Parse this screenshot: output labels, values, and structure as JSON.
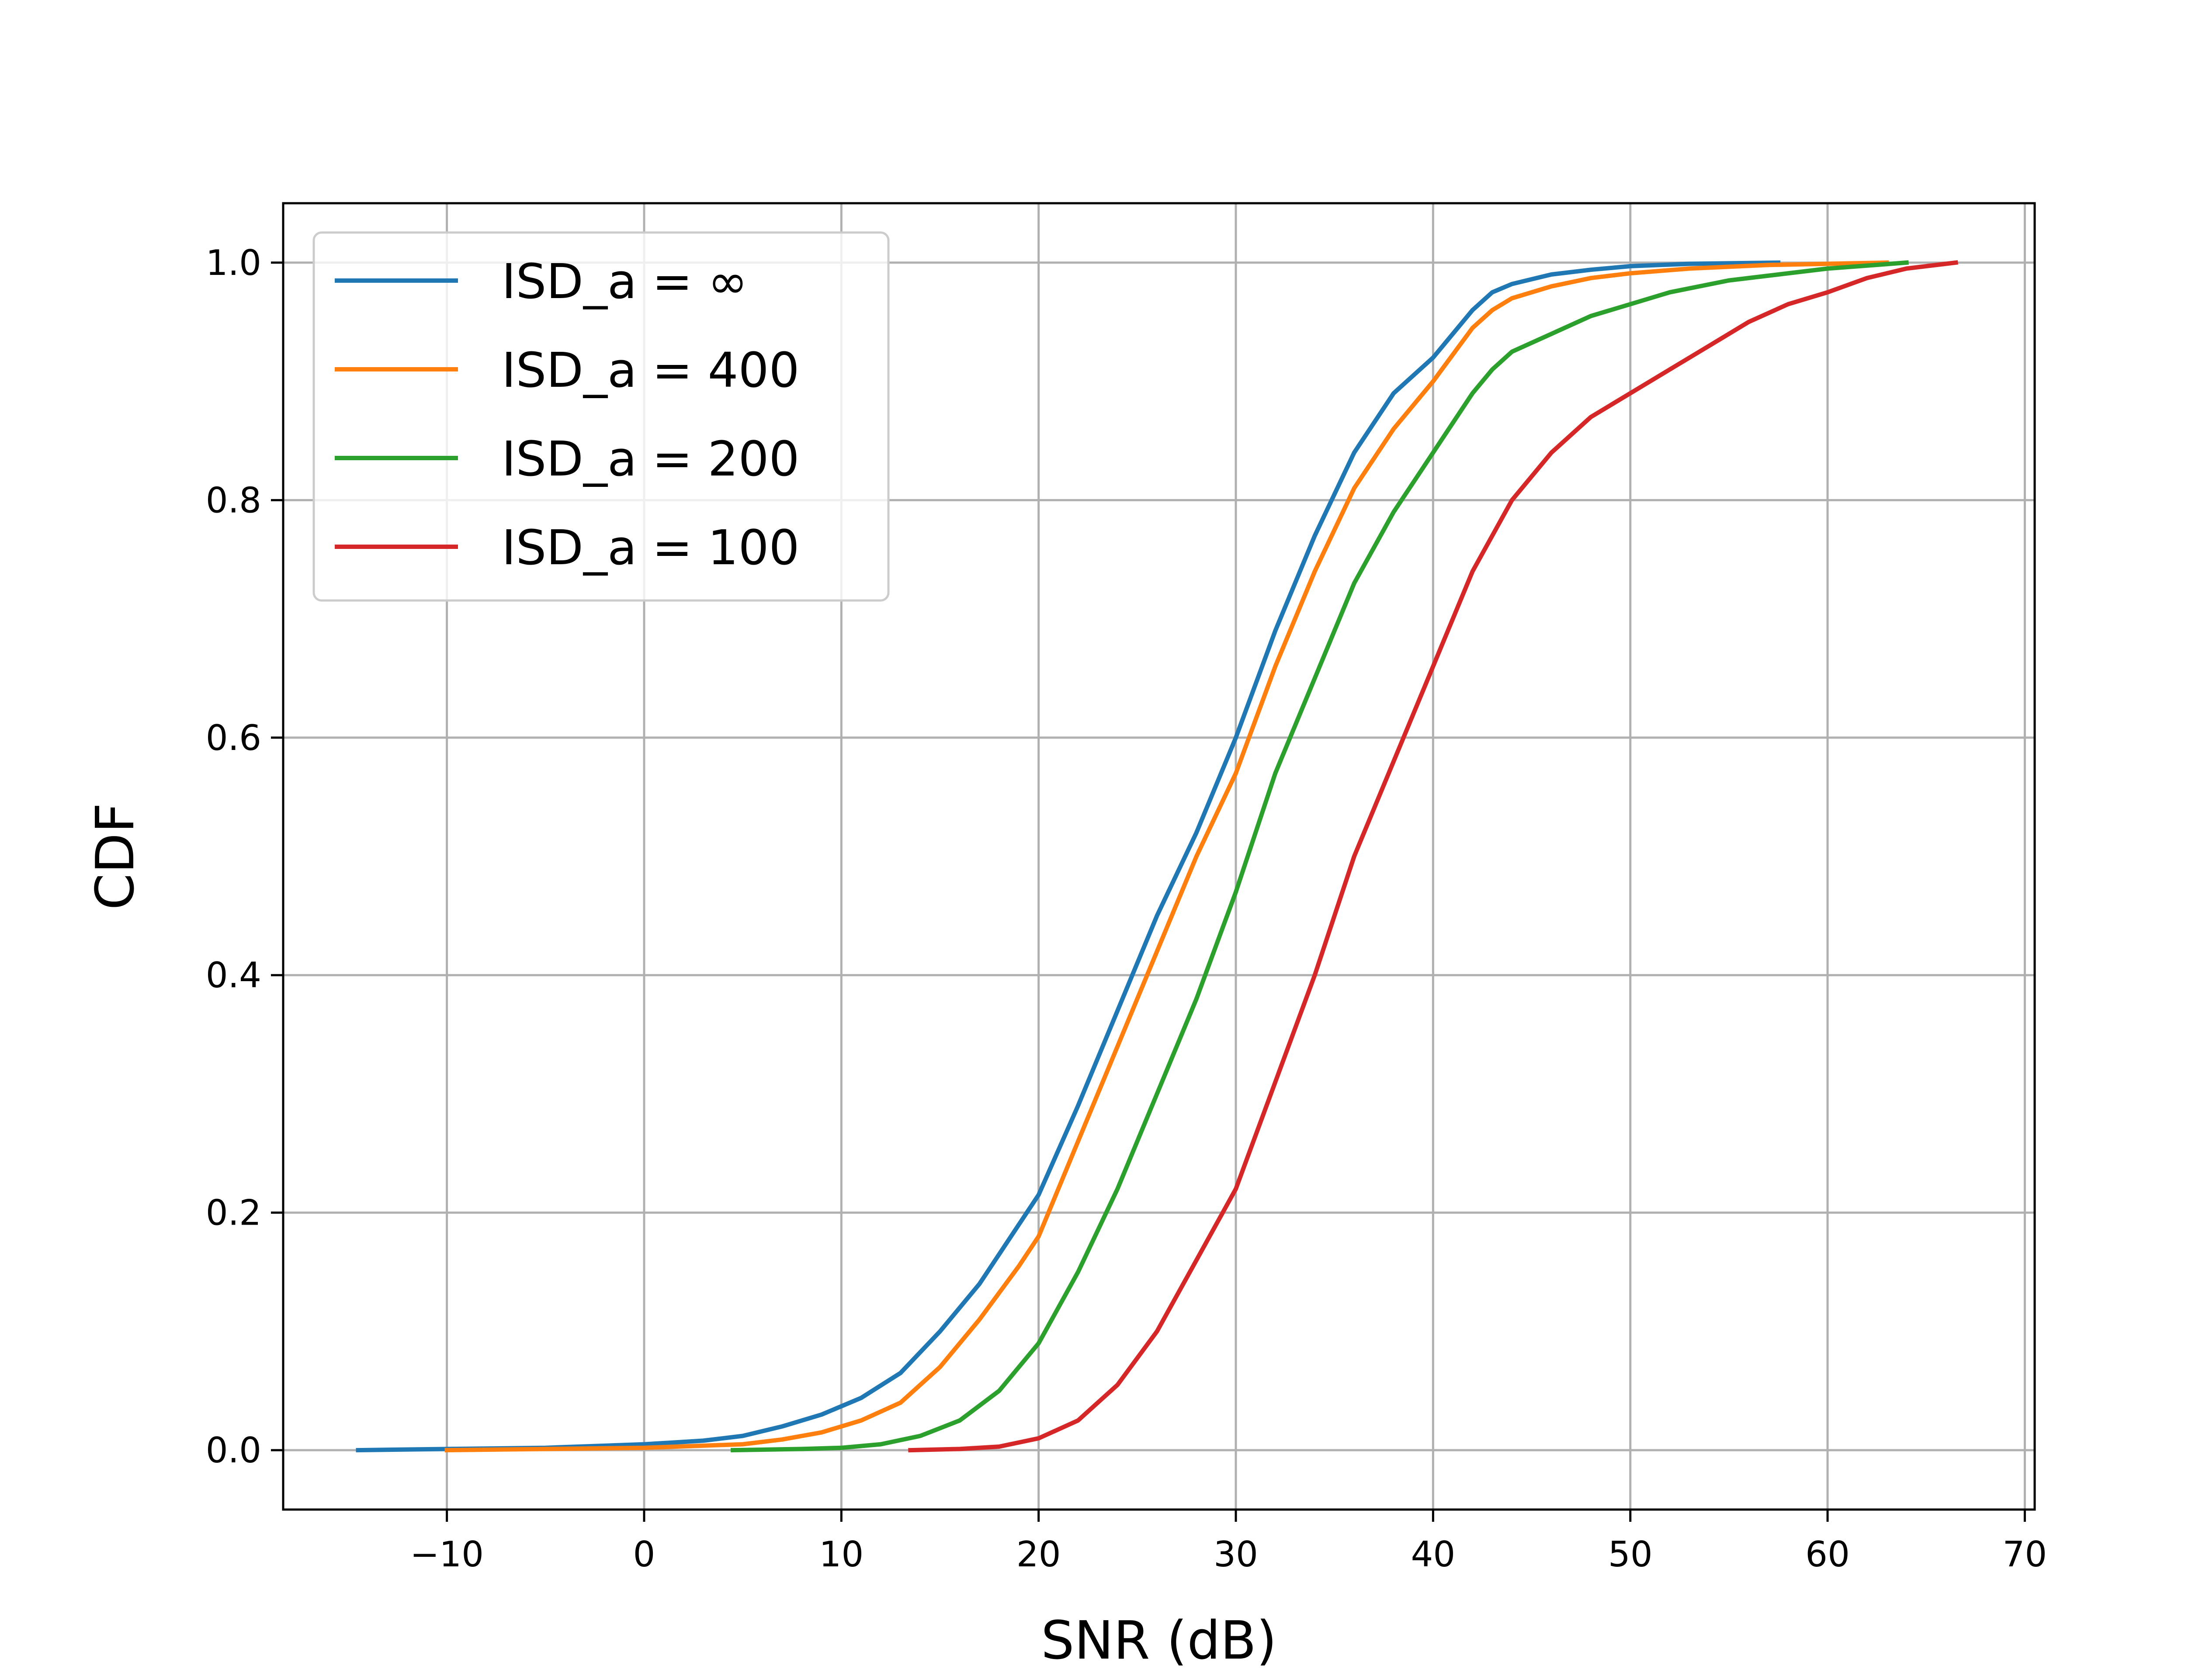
{
  "chart_data": {
    "type": "line",
    "title": "",
    "xlabel": "SNR (dB)",
    "ylabel": "CDF",
    "xlim": [
      -18.3,
      70.5
    ],
    "ylim": [
      -0.05,
      1.05
    ],
    "xticks": [
      -10,
      0,
      10,
      20,
      30,
      40,
      50,
      60,
      70
    ],
    "xtick_labels": [
      "−10",
      "0",
      "10",
      "20",
      "30",
      "40",
      "50",
      "60",
      "70"
    ],
    "yticks": [
      0.0,
      0.2,
      0.4,
      0.6,
      0.8,
      1.0
    ],
    "ytick_labels": [
      "0.0",
      "0.2",
      "0.4",
      "0.6",
      "0.8",
      "1.0"
    ],
    "grid": true,
    "legend_position": "top-left",
    "series": [
      {
        "name": "ISD_a = ∞",
        "color": "#1f77b4",
        "x": [
          -14.5,
          -10,
          -5,
          0,
          3,
          5,
          7,
          9,
          11,
          13,
          15,
          17,
          19,
          20,
          22,
          24,
          26,
          28,
          30,
          32,
          34,
          36,
          38,
          40,
          42,
          43,
          44,
          46,
          48,
          50,
          53,
          57.5
        ],
        "y": [
          0.0,
          0.001,
          0.002,
          0.005,
          0.008,
          0.012,
          0.02,
          0.03,
          0.044,
          0.065,
          0.1,
          0.14,
          0.19,
          0.215,
          0.29,
          0.37,
          0.45,
          0.52,
          0.6,
          0.69,
          0.77,
          0.84,
          0.89,
          0.92,
          0.96,
          0.975,
          0.982,
          0.99,
          0.994,
          0.997,
          0.999,
          1.0
        ]
      },
      {
        "name": "ISD_a = 400",
        "color": "#ff7f0e",
        "x": [
          -10,
          -5,
          0,
          5,
          7,
          9,
          11,
          13,
          15,
          17,
          19,
          20,
          22,
          24,
          26,
          28,
          30,
          32,
          34,
          36,
          38,
          40,
          42,
          43,
          44,
          46,
          48,
          50,
          53,
          57,
          60,
          63
        ],
        "y": [
          0.0,
          0.001,
          0.002,
          0.005,
          0.009,
          0.015,
          0.025,
          0.04,
          0.07,
          0.11,
          0.155,
          0.18,
          0.26,
          0.34,
          0.42,
          0.5,
          0.57,
          0.66,
          0.74,
          0.81,
          0.86,
          0.9,
          0.945,
          0.96,
          0.97,
          0.98,
          0.987,
          0.991,
          0.995,
          0.998,
          0.999,
          1.0
        ]
      },
      {
        "name": "ISD_a = 200",
        "color": "#2ca02c",
        "x": [
          4.5,
          8,
          10,
          12,
          14,
          16,
          18,
          20,
          22,
          24,
          26,
          28,
          30,
          32,
          34,
          36,
          38,
          40,
          42,
          43,
          44,
          46,
          48,
          50,
          52,
          55,
          60,
          64
        ],
        "y": [
          0.0,
          0.001,
          0.002,
          0.005,
          0.012,
          0.025,
          0.05,
          0.09,
          0.15,
          0.22,
          0.3,
          0.38,
          0.47,
          0.57,
          0.65,
          0.73,
          0.79,
          0.84,
          0.89,
          0.91,
          0.925,
          0.94,
          0.955,
          0.965,
          0.975,
          0.985,
          0.995,
          1.0
        ]
      },
      {
        "name": "ISD_a = 100",
        "color": "#d62728",
        "x": [
          13.5,
          16,
          18,
          20,
          22,
          24,
          26,
          28,
          30,
          32,
          34,
          36,
          38,
          40,
          42,
          44,
          46,
          48,
          50,
          52,
          54,
          56,
          58,
          60,
          62,
          64,
          66.5
        ],
        "y": [
          0.0,
          0.001,
          0.003,
          0.01,
          0.025,
          0.055,
          0.1,
          0.16,
          0.22,
          0.31,
          0.4,
          0.5,
          0.58,
          0.66,
          0.74,
          0.8,
          0.84,
          0.87,
          0.89,
          0.91,
          0.93,
          0.95,
          0.965,
          0.975,
          0.987,
          0.995,
          1.0
        ]
      }
    ]
  }
}
